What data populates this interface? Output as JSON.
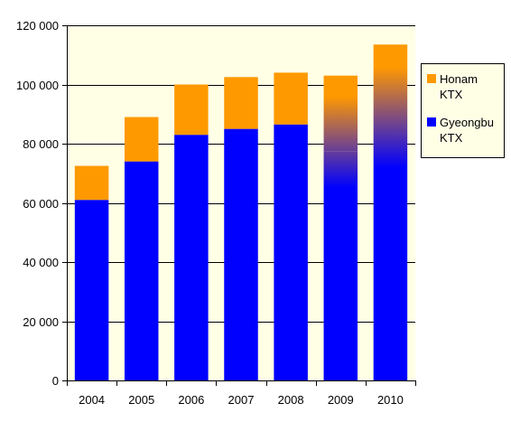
{
  "chart_data": {
    "type": "bar",
    "stacked": true,
    "categories": [
      "2004",
      "2005",
      "2006",
      "2007",
      "2008",
      "2009",
      "2010"
    ],
    "series": [
      {
        "name": "Gyeongbu KTX",
        "name_lines": [
          "Gyeongbu",
          "KTX"
        ],
        "color": "#0000ff",
        "values": [
          61000,
          74000,
          83000,
          85000,
          86500,
          77500,
          85500
        ]
      },
      {
        "name": "Honam KTX",
        "name_lines": [
          "Honam",
          "KTX"
        ],
        "color": "#ff9900",
        "values": [
          11500,
          15000,
          17000,
          17500,
          17500,
          25500,
          28000
        ]
      }
    ],
    "projected_categories": [
      "2009",
      "2010"
    ],
    "yticks": [
      "0",
      "20 000",
      "40 000",
      "60 000",
      "80 000",
      "100 000",
      "120 000"
    ],
    "ylim": [
      0,
      120000
    ],
    "ytick_step": 20000,
    "grid": true,
    "legend_position": "right",
    "plot_background": "#ffffe6",
    "title": "",
    "xlabel": "",
    "ylabel": ""
  }
}
